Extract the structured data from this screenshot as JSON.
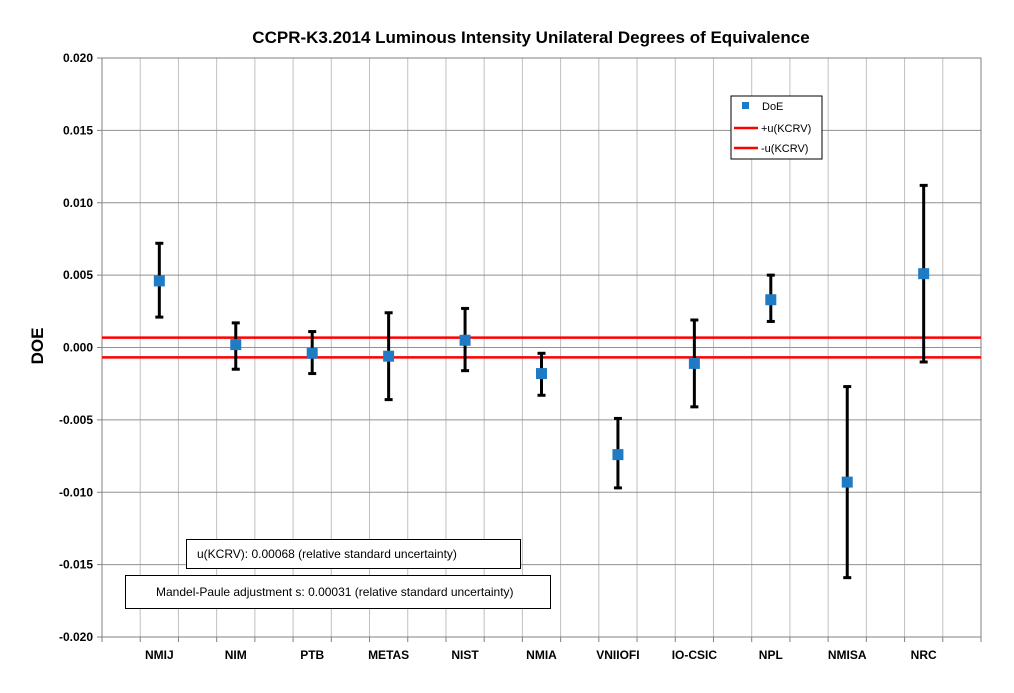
{
  "chart_data": {
    "type": "scatter",
    "title": "CCPR-K3.2014 Luminous Intensity Unilateral Degrees of Equivalence",
    "xlabel": "",
    "ylabel": "DOE",
    "ylim": [
      -0.02,
      0.02
    ],
    "ytick_step": 0.005,
    "grid": true,
    "legend_position": "top-right",
    "categories": [
      "NMIJ",
      "NIM",
      "PTB",
      "METAS",
      "NIST",
      "NMIA",
      "VNIIOFI",
      "IO-CSIC",
      "NPL",
      "NMISA",
      "NRC"
    ],
    "series": [
      {
        "name": "DoE",
        "color": "#1f7bc4",
        "marker": "square",
        "values": [
          0.0046,
          0.0002,
          -0.0004,
          -0.0006,
          0.0005,
          -0.0018,
          -0.0074,
          -0.0011,
          0.0033,
          -0.0093,
          0.0051
        ],
        "error_lower": [
          0.0021,
          -0.0015,
          -0.0018,
          -0.0036,
          -0.0016,
          -0.0033,
          -0.0097,
          -0.0041,
          0.0018,
          -0.0159,
          -0.001
        ],
        "error_upper": [
          0.0072,
          0.0017,
          0.0011,
          0.0024,
          0.0027,
          -0.0004,
          -0.0049,
          0.0019,
          0.005,
          -0.0027,
          0.0112
        ]
      }
    ],
    "reference_lines": [
      {
        "name": "+u(KCRV)",
        "value": 0.00068,
        "color": "#ff0000"
      },
      {
        "name": "-u(KCRV)",
        "value": -0.00068,
        "color": "#ff0000"
      }
    ],
    "annotations": [
      "u(KCRV): 0.00068 (relative standard uncertainty)",
      "Mandel-Paule adjustment s: 0.00031 (relative standard uncertainty)"
    ]
  }
}
